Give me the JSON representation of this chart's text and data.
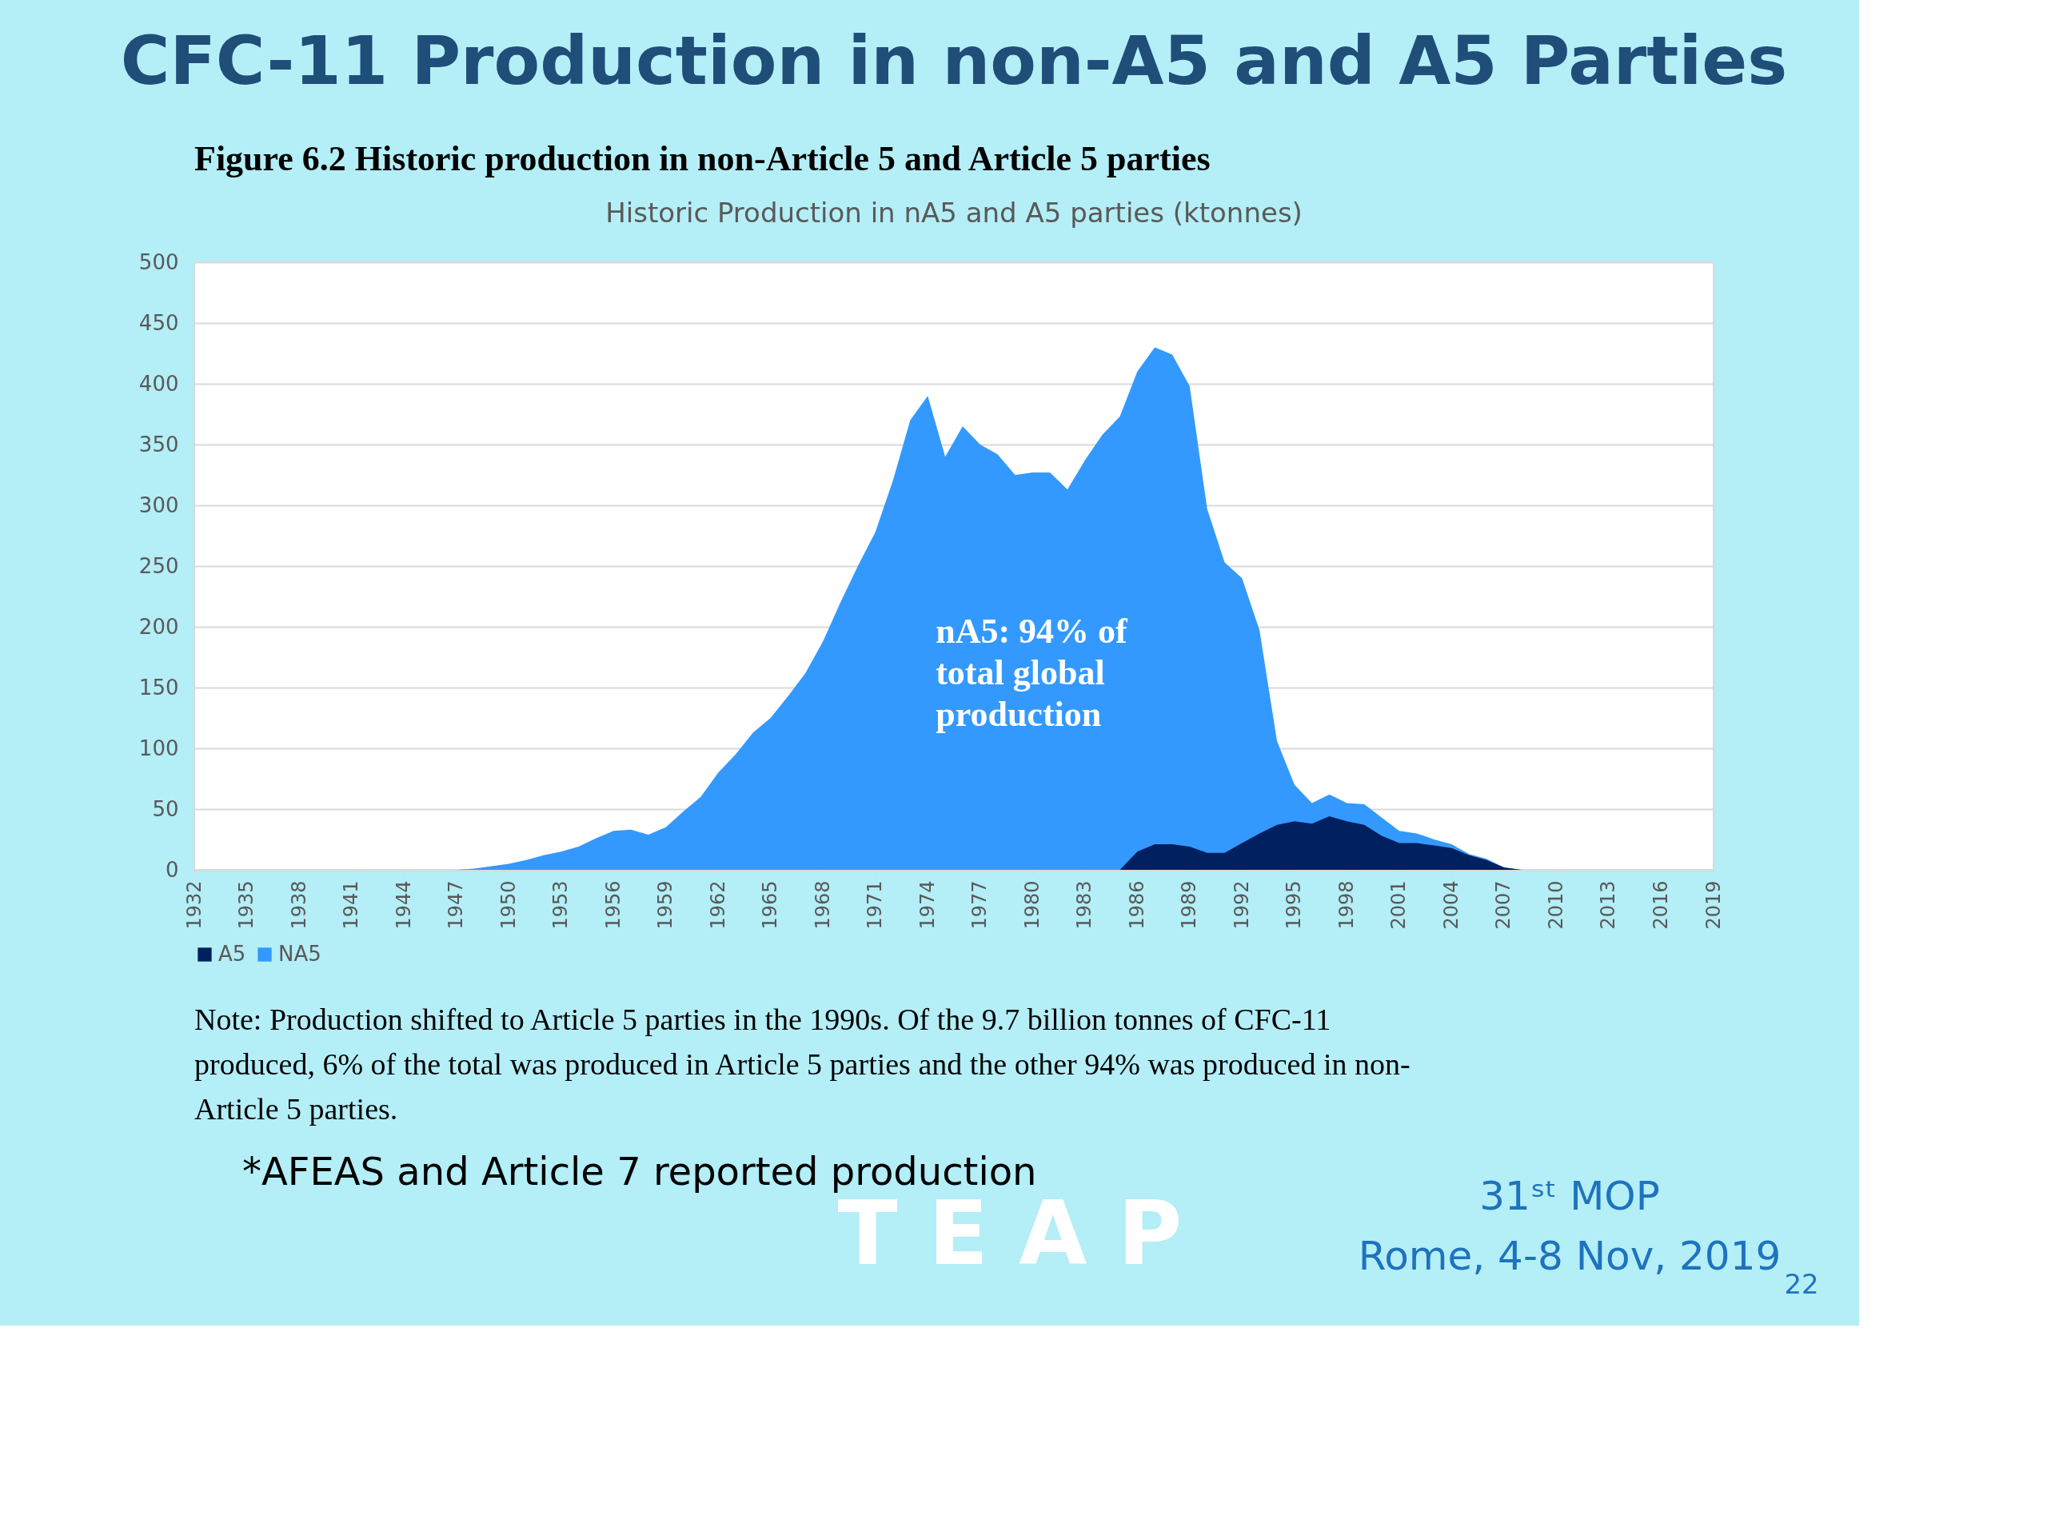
{
  "chart_data": {
    "type": "area",
    "title": "Historic Production in nA5 and A5 parties (ktonnes)",
    "x": [
      1932,
      1933,
      1934,
      1935,
      1936,
      1937,
      1938,
      1939,
      1940,
      1941,
      1942,
      1943,
      1944,
      1945,
      1946,
      1947,
      1948,
      1949,
      1950,
      1951,
      1952,
      1953,
      1954,
      1955,
      1956,
      1957,
      1958,
      1959,
      1960,
      1961,
      1962,
      1963,
      1964,
      1965,
      1966,
      1967,
      1968,
      1969,
      1970,
      1971,
      1972,
      1973,
      1974,
      1975,
      1976,
      1977,
      1978,
      1979,
      1980,
      1981,
      1982,
      1983,
      1984,
      1985,
      1986,
      1987,
      1988,
      1989,
      1990,
      1991,
      1992,
      1993,
      1994,
      1995,
      1996,
      1997,
      1998,
      1999,
      2000,
      2001,
      2002,
      2003,
      2004,
      2005,
      2006,
      2007,
      2008,
      2009,
      2010,
      2011,
      2012,
      2013,
      2014,
      2015,
      2016,
      2017,
      2018,
      2019
    ],
    "series": [
      {
        "name": "A5",
        "color": "#002060",
        "x": [
          1985,
          1986,
          1987,
          1988,
          1989,
          1990,
          1991,
          1992,
          1993,
          1994,
          1995,
          1996,
          1997,
          1998,
          1999,
          2000,
          2001,
          2002,
          2003,
          2004,
          2005,
          2006,
          2007,
          2008
        ],
        "values": [
          0,
          15,
          21,
          21,
          19,
          14,
          14,
          22,
          30,
          37,
          40,
          38,
          44,
          40,
          37,
          28,
          22,
          22,
          20,
          18,
          12,
          8,
          2,
          0
        ]
      },
      {
        "name": "NA5",
        "color": "#3399ff",
        "values": [
          0,
          0,
          0,
          0,
          0,
          0,
          0,
          0,
          0,
          0,
          0,
          0,
          0,
          0,
          0,
          0,
          1,
          3,
          5,
          8,
          12,
          15,
          19,
          26,
          32,
          33,
          29,
          35,
          48,
          60,
          80,
          95,
          113,
          125,
          143,
          162,
          188,
          220,
          250,
          278,
          320,
          370,
          390,
          340,
          365,
          350,
          342,
          325,
          327,
          327,
          313,
          337,
          358,
          373,
          410,
          430,
          424,
          398,
          297,
          253,
          240,
          197,
          106,
          70,
          55,
          62,
          55,
          54,
          43,
          32,
          30,
          25,
          21,
          13,
          9,
          2,
          0,
          0,
          0,
          0,
          0,
          0,
          0,
          0,
          0,
          0,
          0,
          0
        ]
      }
    ],
    "xlim": [
      1932,
      2019
    ],
    "xticks": [
      1932,
      1935,
      1938,
      1941,
      1944,
      1947,
      1950,
      1953,
      1956,
      1959,
      1962,
      1965,
      1968,
      1971,
      1974,
      1977,
      1980,
      1983,
      1986,
      1989,
      1992,
      1995,
      1998,
      2001,
      2004,
      2007,
      2010,
      2013,
      2016,
      2019
    ],
    "ylim": [
      0,
      500
    ],
    "yticks": [
      0,
      50,
      100,
      150,
      200,
      250,
      300,
      350,
      400,
      450,
      500
    ],
    "grid": "y",
    "legend": "bottom",
    "annotations": [
      "CFC-11 Production in non-A5 and A5 Parties",
      "Figure 6.2    Historic production in non-Article 5 and Article 5 parties",
      "nA5: 94% of\ntotal global\nproduction",
      "Note: Production shifted to Article 5 parties in the 1990s. Of the 9.7 billion tonnes of CFC-11\nproduced, 6% of the total was produced in Article 5 parties and the other 94% was produced in non-\nArticle 5 parties.",
      "*AFEAS and Article 7 reported production",
      "T E A P",
      "31ˢᵗ  MOP",
      "Rome, 4-8 Nov, 2019",
      "22"
    ]
  }
}
